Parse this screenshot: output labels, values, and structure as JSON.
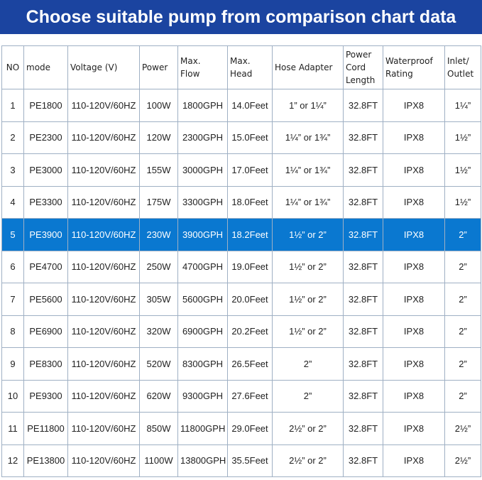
{
  "header": {
    "title": "Choose suitable pump from comparison chart data"
  },
  "table": {
    "columns": [
      "NO",
      "mode",
      "Voltage (V)",
      "Power",
      "Max.\nFlow",
      "Max.\nHead",
      "Hose Adapter",
      "Power\nCord\nLength",
      "Waterproof\nRating",
      "Inlet/\nOutlet"
    ],
    "rows": [
      [
        "1",
        "PE1800",
        "110-120V/60HZ",
        "100W",
        "1800GPH",
        "14.0Feet",
        "1” or 1¼”",
        "32.8FT",
        "IPX8",
        "1¼”"
      ],
      [
        "2",
        "PE2300",
        "110-120V/60HZ",
        "120W",
        "2300GPH",
        "15.0Feet",
        "1¼” or 1¾”",
        "32.8FT",
        "IPX8",
        "1½”"
      ],
      [
        "3",
        "PE3000",
        "110-120V/60HZ",
        "155W",
        "3000GPH",
        "17.0Feet",
        "1¼” or 1¾”",
        "32.8FT",
        "IPX8",
        "1½”"
      ],
      [
        "4",
        "PE3300",
        "110-120V/60HZ",
        "175W",
        "3300GPH",
        "18.0Feet",
        "1¼” or 1¾”",
        "32.8FT",
        "IPX8",
        "1½”"
      ],
      [
        "5",
        "PE3900",
        "110-120V/60HZ",
        "230W",
        "3900GPH",
        "18.2Feet",
        "1½” or 2”",
        "32.8FT",
        "IPX8",
        "2”"
      ],
      [
        "6",
        "PE4700",
        "110-120V/60HZ",
        "250W",
        "4700GPH",
        "19.0Feet",
        "1½” or 2”",
        "32.8FT",
        "IPX8",
        "2”"
      ],
      [
        "7",
        "PE5600",
        "110-120V/60HZ",
        "305W",
        "5600GPH",
        "20.0Feet",
        "1½” or 2”",
        "32.8FT",
        "IPX8",
        "2”"
      ],
      [
        "8",
        "PE6900",
        "110-120V/60HZ",
        "320W",
        "6900GPH",
        "20.2Feet",
        "1½” or 2”",
        "32.8FT",
        "IPX8",
        "2”"
      ],
      [
        "9",
        "PE8300",
        "110-120V/60HZ",
        "520W",
        "8300GPH",
        "26.5Feet",
        "2”",
        "32.8FT",
        "IPX8",
        "2”"
      ],
      [
        "10",
        "PE9300",
        "110-120V/60HZ",
        "620W",
        "9300GPH",
        "27.6Feet",
        "2”",
        "32.8FT",
        "IPX8",
        "2”"
      ],
      [
        "11",
        "PE11800",
        "110-120V/60HZ",
        "850W",
        "11800GPH",
        "29.0Feet",
        "2½” or 2”",
        "32.8FT",
        "IPX8",
        "2½”"
      ],
      [
        "12",
        "PE13800",
        "110-120V/60HZ",
        "1100W",
        "13800GPH",
        "35.5Feet",
        "2½” or 2”",
        "32.8FT",
        "IPX8",
        "2½”"
      ]
    ],
    "highlight_row": 4
  }
}
